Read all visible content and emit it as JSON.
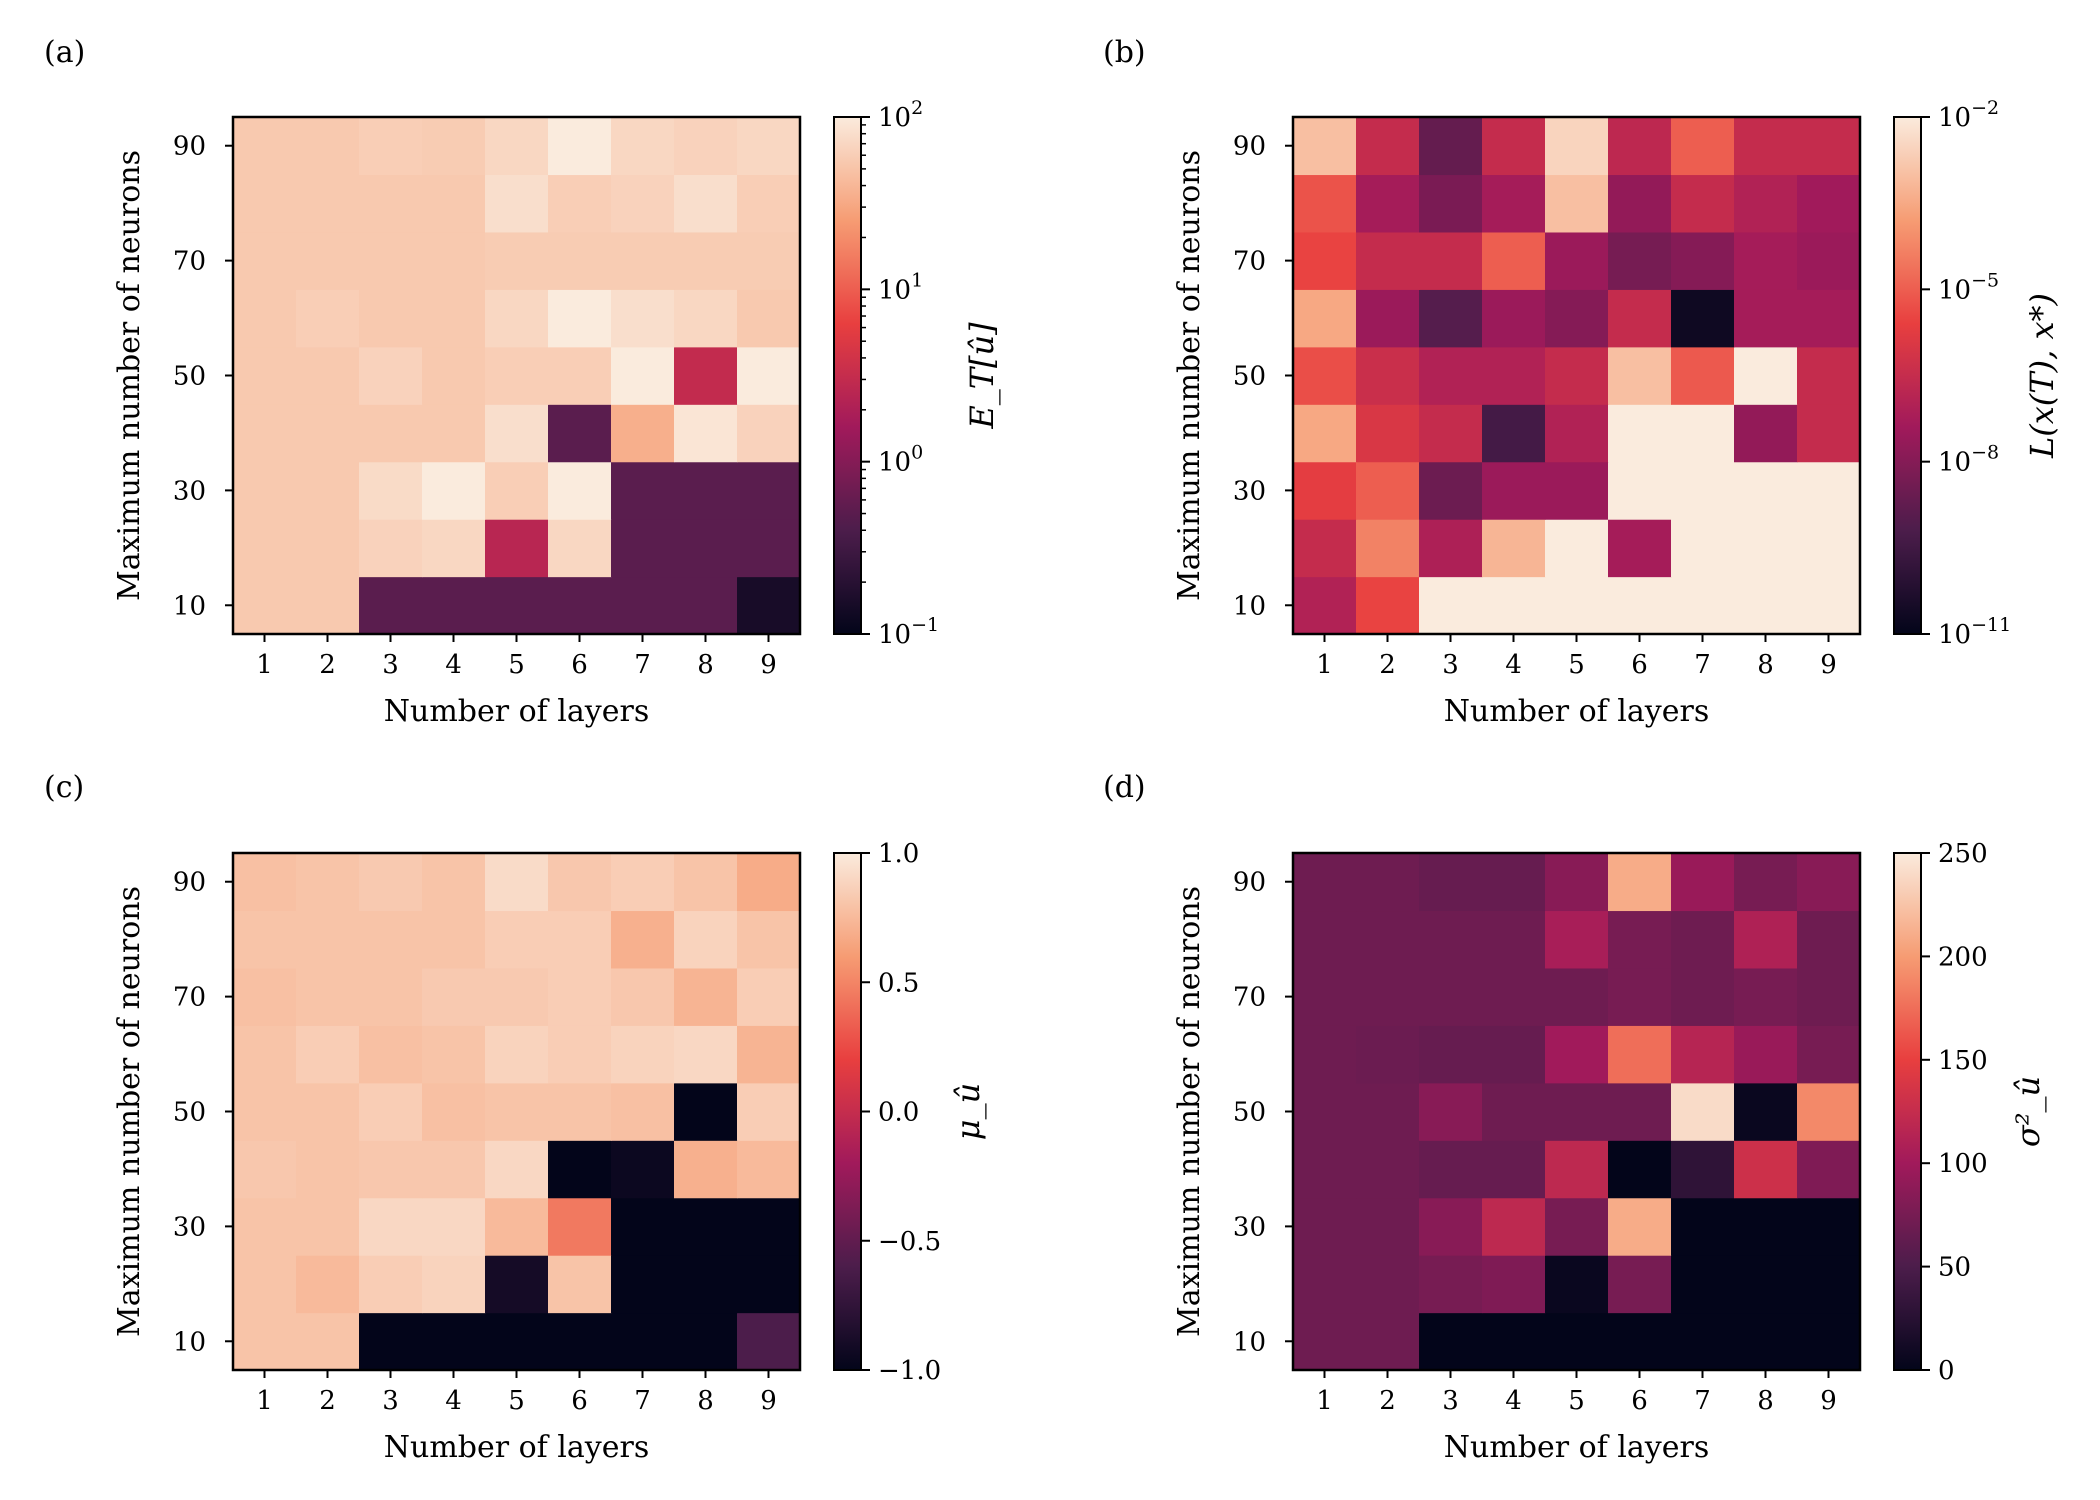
{
  "colormap": [
    "#03051a",
    "#4c1d4b",
    "#a11a5b",
    "#e83f3f",
    "#f69c73",
    "#faebdd"
  ],
  "chart_data": [
    {
      "type": "heatmap",
      "panel_label": "(a)",
      "xlabel": "Number of layers",
      "ylabel": "Maximum number of neurons",
      "x_categories": [
        "1",
        "2",
        "3",
        "4",
        "5",
        "6",
        "7",
        "8",
        "9"
      ],
      "y_categories": [
        "10",
        "20",
        "30",
        "40",
        "50",
        "60",
        "70",
        "80",
        "90"
      ],
      "y_tick_labels": [
        "10",
        "30",
        "50",
        "70",
        "90"
      ],
      "color_scale": "log",
      "colorbar": {
        "label": "E_T[û]",
        "range": [
          0.1,
          100
        ],
        "ticks": [
          {
            "base": "10",
            "exp": "2",
            "value": 100
          },
          {
            "base": "10",
            "exp": "1",
            "value": 10
          },
          {
            "base": "10",
            "exp": "0",
            "value": 1
          },
          {
            "base": "10",
            "exp": "−1",
            "value": 0.1
          }
        ]
      },
      "values": [
        [
          55,
          55,
          0.5,
          0.5,
          0.5,
          0.5,
          0.5,
          0.5,
          0.15
        ],
        [
          55,
          55,
          65,
          70,
          2.5,
          70,
          0.5,
          0.5,
          0.5
        ],
        [
          55,
          55,
          75,
          100,
          60,
          100,
          0.5,
          0.5,
          0.5
        ],
        [
          55,
          55,
          55,
          55,
          80,
          0.5,
          35,
          90,
          65
        ],
        [
          55,
          55,
          65,
          55,
          60,
          60,
          100,
          3,
          100
        ],
        [
          55,
          60,
          55,
          55,
          70,
          100,
          80,
          70,
          55
        ],
        [
          55,
          55,
          55,
          55,
          58,
          58,
          58,
          58,
          58
        ],
        [
          55,
          55,
          55,
          55,
          80,
          60,
          65,
          80,
          60
        ],
        [
          55,
          55,
          60,
          58,
          70,
          100,
          70,
          65,
          70
        ]
      ]
    },
    {
      "type": "heatmap",
      "panel_label": "(b)",
      "xlabel": "Number of layers",
      "ylabel": "Maximum number of neurons",
      "x_categories": [
        "1",
        "2",
        "3",
        "4",
        "5",
        "6",
        "7",
        "8",
        "9"
      ],
      "y_categories": [
        "10",
        "20",
        "30",
        "40",
        "50",
        "60",
        "70",
        "80",
        "90"
      ],
      "y_tick_labels": [
        "10",
        "30",
        "50",
        "70",
        "90"
      ],
      "color_scale": "log",
      "colorbar": {
        "label": "L(x(T), x*)",
        "range": [
          1e-11,
          0.01
        ],
        "ticks": [
          {
            "base": "10",
            "exp": "−2",
            "value": 0.01
          },
          {
            "base": "10",
            "exp": "−5",
            "value": 1e-05
          },
          {
            "base": "10",
            "exp": "−8",
            "value": 1e-08
          },
          {
            "base": "10",
            "exp": "−11",
            "value": 1e-11
          }
        ]
      },
      "values": [
        [
          1e-07,
          3e-06,
          0.01,
          0.01,
          0.01,
          0.01,
          0.01,
          0.01,
          0.01
        ],
        [
          3e-07,
          5e-05,
          8e-08,
          0.0006,
          0.01,
          5e-08,
          0.01,
          0.01,
          0.01
        ],
        [
          2e-06,
          1e-05,
          3e-09,
          3e-08,
          3e-08,
          0.01,
          0.01,
          0.01,
          0.01
        ],
        [
          0.0003,
          1e-06,
          3e-07,
          4e-10,
          1e-07,
          0.01,
          0.01,
          2e-08,
          3e-07
        ],
        [
          5e-06,
          4e-07,
          1e-07,
          1e-07,
          3e-07,
          0.001,
          8e-06,
          0.01,
          3e-07
        ],
        [
          0.0003,
          3e-08,
          1e-09,
          3e-08,
          1e-08,
          3e-07,
          2e-11,
          5e-08,
          5e-08
        ],
        [
          3e-06,
          3e-07,
          3e-07,
          1e-05,
          3e-08,
          5e-09,
          1e-08,
          5e-08,
          3e-08
        ],
        [
          6e-06,
          5e-08,
          6e-09,
          5e-08,
          0.001,
          2e-08,
          3e-07,
          1e-07,
          4e-08
        ],
        [
          0.001,
          3e-07,
          2e-09,
          3e-07,
          0.003,
          2e-07,
          1e-05,
          3e-07,
          3e-07
        ]
      ]
    },
    {
      "type": "heatmap",
      "panel_label": "(c)",
      "xlabel": "Number of layers",
      "ylabel": "Maximum number of neurons",
      "x_categories": [
        "1",
        "2",
        "3",
        "4",
        "5",
        "6",
        "7",
        "8",
        "9"
      ],
      "y_categories": [
        "10",
        "20",
        "30",
        "40",
        "50",
        "60",
        "70",
        "80",
        "90"
      ],
      "y_tick_labels": [
        "10",
        "30",
        "50",
        "70",
        "90"
      ],
      "color_scale": "linear",
      "colorbar": {
        "label": "μ_û",
        "range": [
          -1.0,
          1.0
        ],
        "ticks": [
          {
            "text": "1.0",
            "value": 1.0
          },
          {
            "text": "0.5",
            "value": 0.5
          },
          {
            "text": "0.0",
            "value": 0.0
          },
          {
            "text": "−0.5",
            "value": -0.5
          },
          {
            "text": "−1.0",
            "value": -1.0
          }
        ]
      },
      "values": [
        [
          0.8,
          0.8,
          -1.0,
          -1.0,
          -1.0,
          -1.0,
          -1.0,
          -1.0,
          -0.6
        ],
        [
          0.8,
          0.75,
          0.85,
          0.88,
          -0.9,
          0.8,
          -1.0,
          -1.0,
          -1.0
        ],
        [
          0.8,
          0.8,
          0.9,
          0.9,
          0.75,
          0.45,
          -1.0,
          -1.0,
          -1.0
        ],
        [
          0.82,
          0.8,
          0.82,
          0.82,
          0.9,
          -1.0,
          -0.95,
          0.7,
          0.75
        ],
        [
          0.8,
          0.8,
          0.85,
          0.78,
          0.8,
          0.8,
          0.78,
          -1.0,
          0.85
        ],
        [
          0.8,
          0.85,
          0.78,
          0.8,
          0.88,
          0.85,
          0.88,
          0.9,
          0.72
        ],
        [
          0.78,
          0.8,
          0.8,
          0.83,
          0.83,
          0.85,
          0.82,
          0.72,
          0.85
        ],
        [
          0.8,
          0.8,
          0.8,
          0.8,
          0.85,
          0.85,
          0.7,
          0.88,
          0.8
        ],
        [
          0.78,
          0.8,
          0.83,
          0.8,
          0.92,
          0.82,
          0.85,
          0.8,
          0.68
        ]
      ]
    },
    {
      "type": "heatmap",
      "panel_label": "(d)",
      "xlabel": "Number of layers",
      "ylabel": "Maximum number of neurons",
      "x_categories": [
        "1",
        "2",
        "3",
        "4",
        "5",
        "6",
        "7",
        "8",
        "9"
      ],
      "y_categories": [
        "10",
        "20",
        "30",
        "40",
        "50",
        "60",
        "70",
        "80",
        "90"
      ],
      "y_tick_labels": [
        "10",
        "30",
        "50",
        "70",
        "90"
      ],
      "color_scale": "linear",
      "colorbar": {
        "label": "σ²_û",
        "range": [
          0,
          250
        ],
        "ticks": [
          {
            "text": "250",
            "value": 250
          },
          {
            "text": "200",
            "value": 200
          },
          {
            "text": "150",
            "value": 150
          },
          {
            "text": "100",
            "value": 100
          },
          {
            "text": "50",
            "value": 50
          },
          {
            "text": "0",
            "value": 0
          }
        ]
      },
      "values": [
        [
          70,
          70,
          0,
          0,
          0,
          0,
          0,
          0,
          0
        ],
        [
          70,
          70,
          75,
          80,
          5,
          75,
          0,
          0,
          0
        ],
        [
          70,
          70,
          85,
          120,
          75,
          210,
          0,
          0,
          0
        ],
        [
          70,
          70,
          65,
          65,
          120,
          0,
          30,
          130,
          80
        ],
        [
          70,
          70,
          85,
          70,
          70,
          70,
          240,
          5,
          190
        ],
        [
          70,
          68,
          65,
          65,
          100,
          175,
          115,
          95,
          75
        ],
        [
          70,
          70,
          70,
          70,
          70,
          75,
          70,
          75,
          70
        ],
        [
          70,
          70,
          70,
          70,
          105,
          75,
          70,
          110,
          70
        ],
        [
          70,
          70,
          65,
          65,
          85,
          210,
          95,
          75,
          85
        ]
      ]
    }
  ]
}
